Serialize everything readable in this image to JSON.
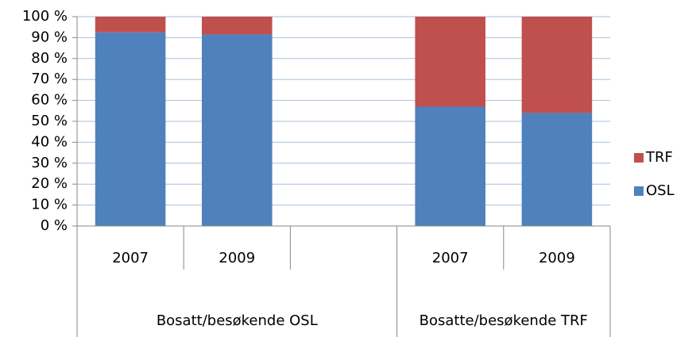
{
  "chart_data": {
    "type": "stacked-bar",
    "groups": [
      {
        "name": "Bosatt/besøkende OSL",
        "categories": [
          "2007",
          "2009",
          null
        ]
      },
      {
        "name": "Bosatte/besøkende TRF",
        "categories": [
          "2007",
          "2009"
        ]
      }
    ],
    "series": [
      {
        "name": "OSL",
        "color": "#4f81bd",
        "values": [
          92.5,
          91.5,
          null,
          57,
          54
        ]
      },
      {
        "name": "TRF",
        "color": "#c0504d",
        "values": [
          7.5,
          8.5,
          null,
          43,
          46
        ]
      }
    ],
    "ylim": [
      0,
      100
    ],
    "yticks": [
      {
        "value": 0,
        "label": "0 %"
      },
      {
        "value": 10,
        "label": "10 %"
      },
      {
        "value": 20,
        "label": "20 %"
      },
      {
        "value": 30,
        "label": "30 %"
      },
      {
        "value": 40,
        "label": "40 %"
      },
      {
        "value": 50,
        "label": "50 %"
      },
      {
        "value": 60,
        "label": "60 %"
      },
      {
        "value": 70,
        "label": "70 %"
      },
      {
        "value": 80,
        "label": "80 %"
      },
      {
        "value": 90,
        "label": "90 %"
      },
      {
        "value": 100,
        "label": "100 %"
      }
    ],
    "grid": true,
    "legend": "right"
  }
}
